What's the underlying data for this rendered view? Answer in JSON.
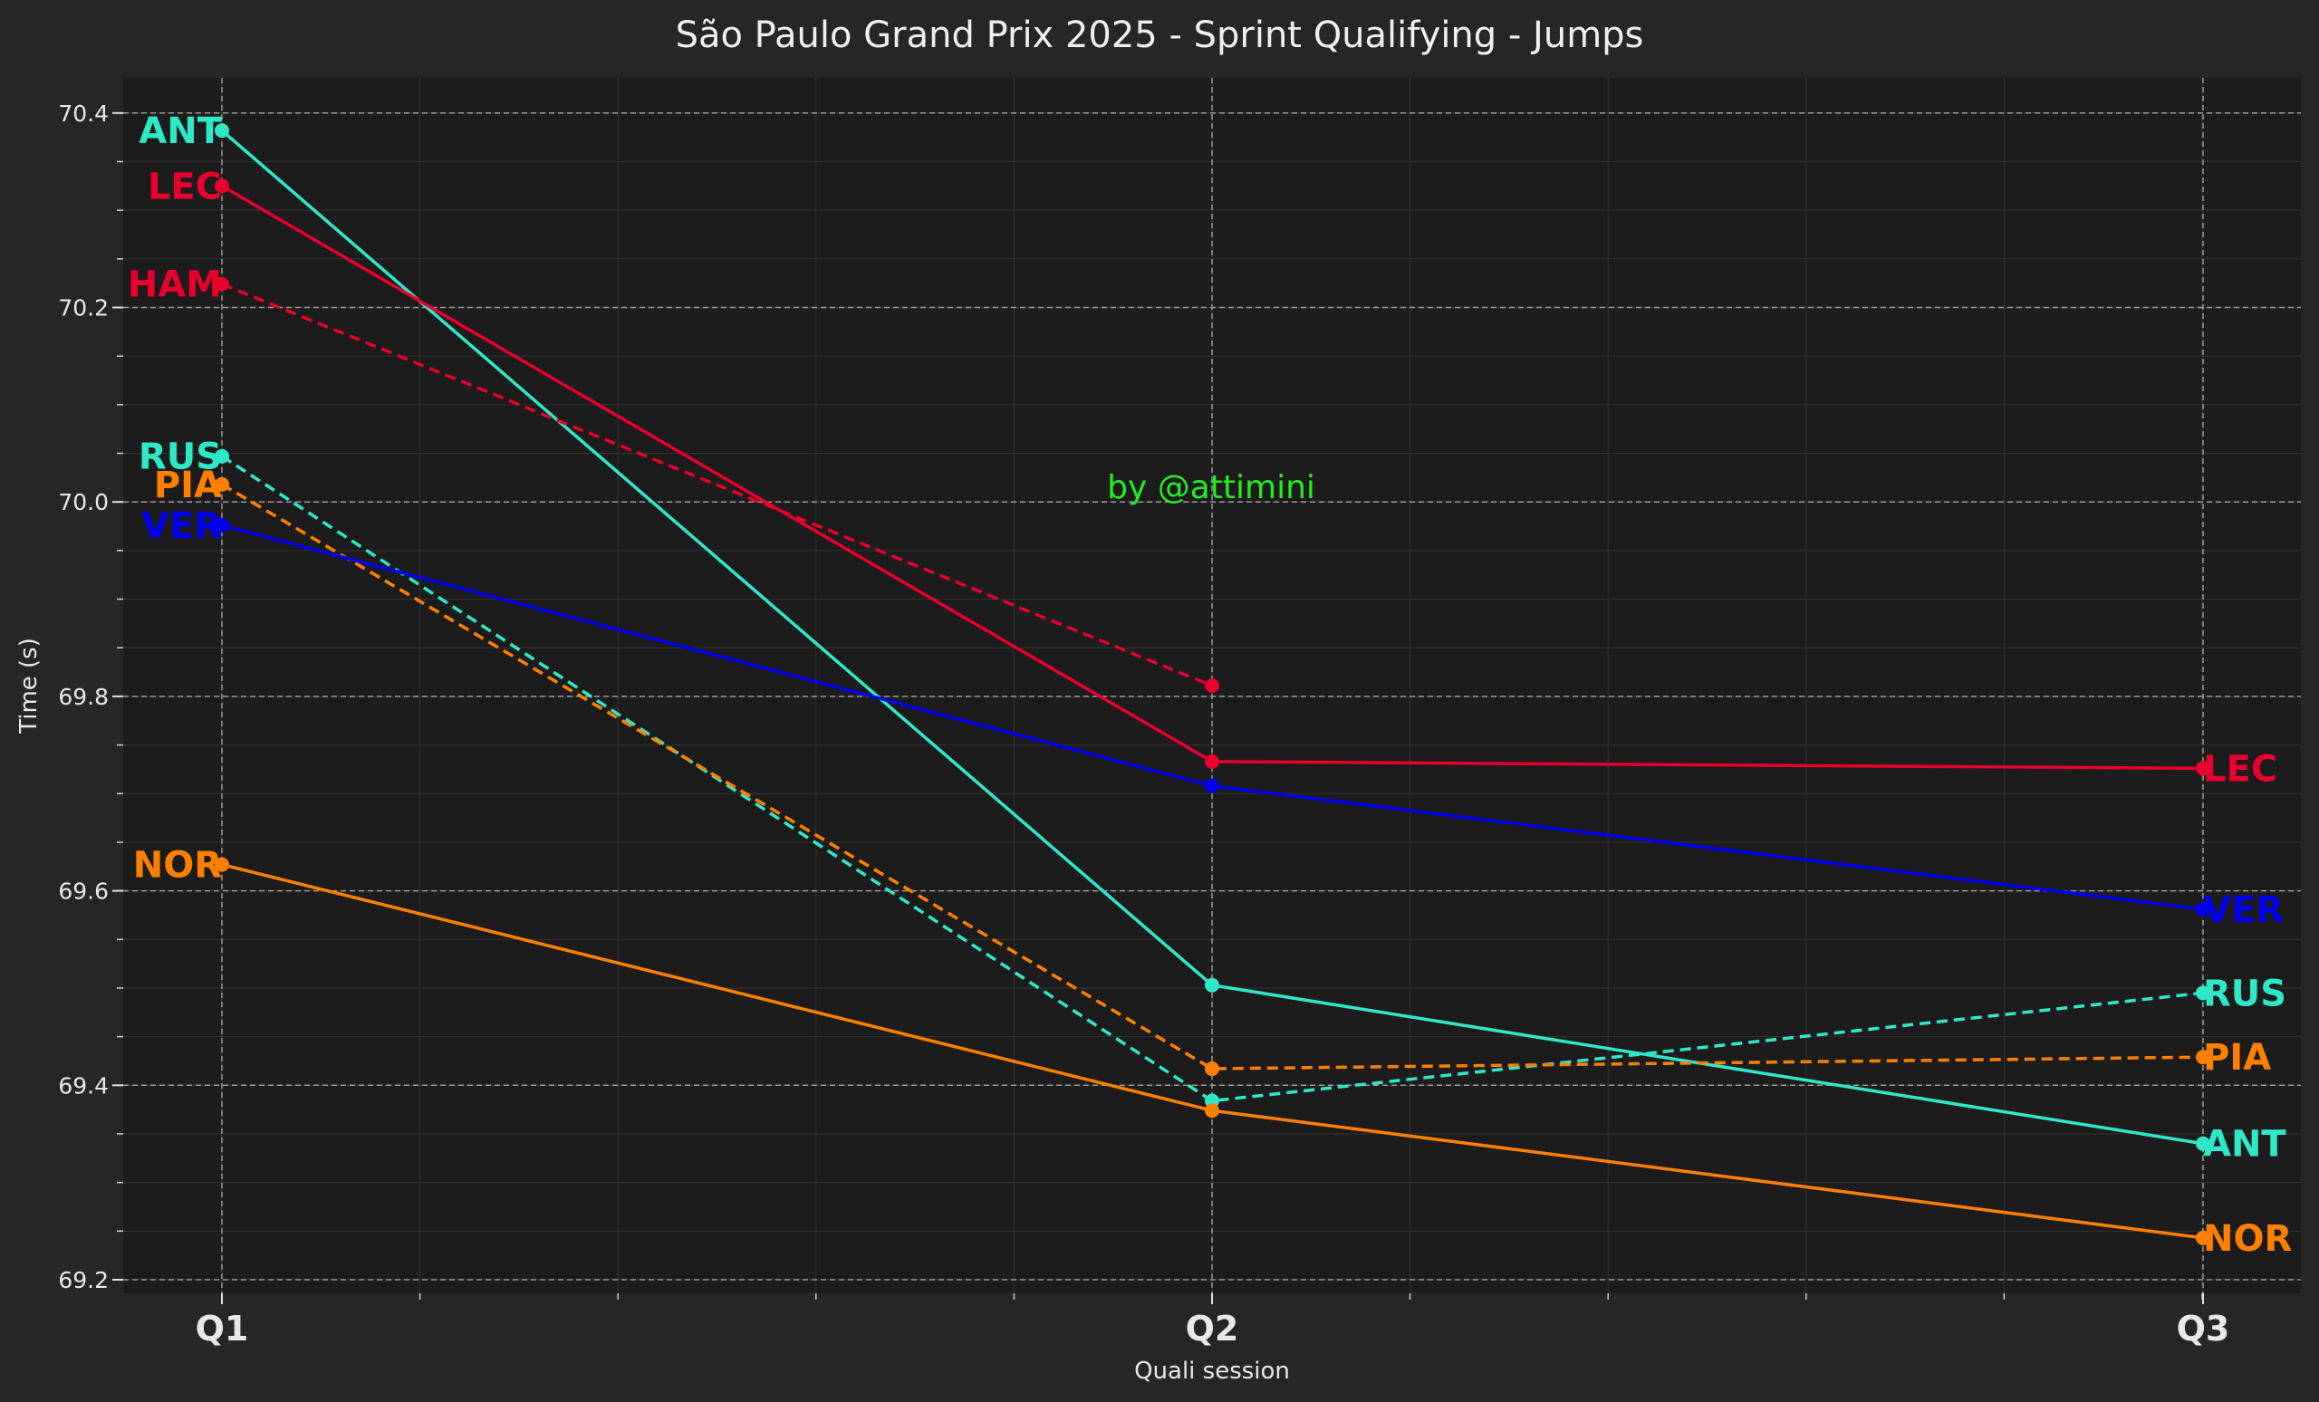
{
  "chart_data": {
    "type": "line",
    "title": "São Paulo Grand Prix 2025 - Sprint Qualifying - Jumps",
    "xlabel": "Quali session",
    "ylabel": "Time (s)",
    "categories": [
      "Q1",
      "Q2",
      "Q3"
    ],
    "ylim": [
      69.185,
      70.44
    ],
    "yticks": [
      "69.2",
      "69.4",
      "69.6",
      "69.8",
      "70.0",
      "70.2",
      "70.4"
    ],
    "grid": true,
    "watermark": "by @attimini",
    "watermark_color": "#22ee22",
    "series": [
      {
        "name": "ANT",
        "color": "#2ee8c8",
        "dashed": false,
        "values": [
          70.382,
          69.503,
          69.34
        ]
      },
      {
        "name": "LEC",
        "color": "#e8002d",
        "dashed": false,
        "values": [
          70.325,
          69.733,
          69.726
        ]
      },
      {
        "name": "HAM",
        "color": "#e8002d",
        "dashed": true,
        "values": [
          70.224,
          69.811,
          null
        ]
      },
      {
        "name": "RUS",
        "color": "#2ee8c8",
        "dashed": true,
        "values": [
          70.047,
          69.384,
          69.495
        ]
      },
      {
        "name": "PIA",
        "color": "#ff8000",
        "dashed": true,
        "values": [
          70.018,
          69.417,
          69.429
        ]
      },
      {
        "name": "VER",
        "color": "#0000ee",
        "dashed": false,
        "values": [
          69.976,
          69.708,
          69.581
        ]
      },
      {
        "name": "NOR",
        "color": "#ff8000",
        "dashed": false,
        "values": [
          69.627,
          69.374,
          69.243
        ]
      }
    ]
  }
}
